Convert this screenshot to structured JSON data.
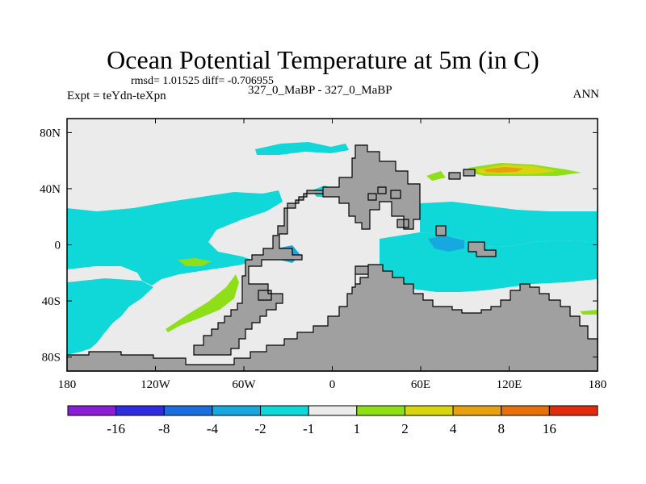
{
  "chart_data": {
    "type": "heatmap",
    "title": "Ocean Potential Temperature at 5m (in C)",
    "stats": "rmsd= 1.01525 diff= -0.706955",
    "expt": "Expt = teYdn-teXpn",
    "cases": "327_0_MaBP - 327_0_MaBP",
    "season": "ANN",
    "x_range": [
      -180,
      180
    ],
    "y_range": [
      -90,
      90
    ],
    "x_ticks": [
      {
        "value": -180,
        "label": "180"
      },
      {
        "value": -120,
        "label": "120W"
      },
      {
        "value": -60,
        "label": "60W"
      },
      {
        "value": 0,
        "label": "0"
      },
      {
        "value": 60,
        "label": "60E"
      },
      {
        "value": 120,
        "label": "120E"
      },
      {
        "value": 180,
        "label": "180"
      }
    ],
    "y_ticks": [
      {
        "value": 80,
        "label": "80N"
      },
      {
        "value": 40,
        "label": "40N"
      },
      {
        "value": 0,
        "label": "0"
      },
      {
        "value": -40,
        "label": "40S"
      },
      {
        "value": -80,
        "label": "80S"
      }
    ],
    "colorbar": {
      "levels": [
        "-16",
        "-8",
        "-4",
        "-2",
        "-1",
        "1",
        "2",
        "4",
        "8",
        "16"
      ],
      "colors": [
        "#8a1ed8",
        "#2e2ee0",
        "#1a6fe0",
        "#18a8e0",
        "#10d8d8",
        "#ebebeb",
        "#8ede18",
        "#d8d410",
        "#e6a010",
        "#e6700a",
        "#e02c0a"
      ]
    },
    "colors": {
      "land": "#a0a0a0",
      "neutral": "#ebebeb",
      "cyan": "#10d8d8",
      "light_blue": "#18a8e0",
      "green": "#8ede18",
      "yellow": "#d8d410",
      "orange": "#e6a010"
    }
  }
}
